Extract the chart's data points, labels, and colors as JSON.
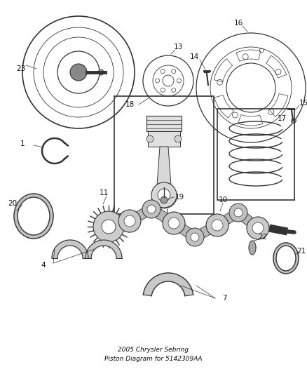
{
  "title": "2005 Chrysler Sebring\nPiston Diagram for 5142309AA",
  "background_color": "#ffffff",
  "line_color": "#333333",
  "label_color": "#111111",
  "label_fontsize": 7.5,
  "title_fontsize": 6.5,
  "figsize": [
    4.38,
    5.33
  ],
  "dpi": 100
}
